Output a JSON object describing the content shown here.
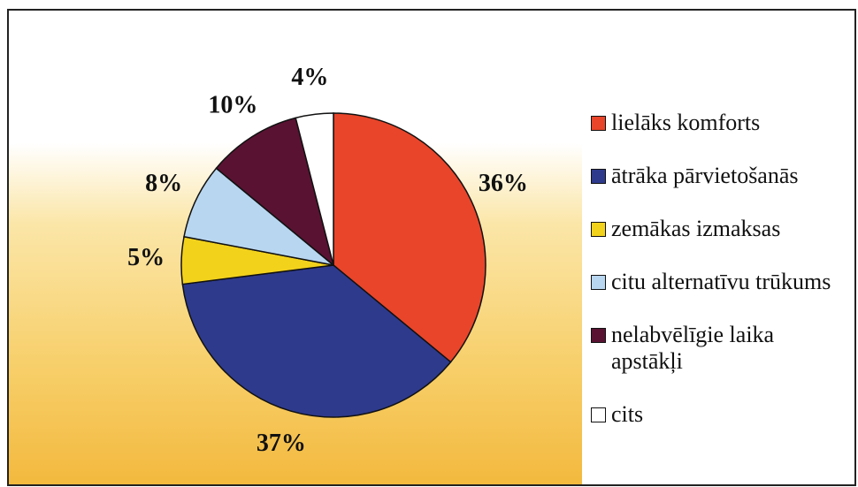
{
  "chart_data": {
    "type": "pie",
    "categories": [
      "lielāks komforts",
      "ātrāka pārvietošanās",
      "zemākas izmaksas",
      "citu alternatīvu trūkums",
      "nelabvēlīgie laika apstākļi",
      "cits"
    ],
    "values": [
      36,
      37,
      5,
      8,
      10,
      4
    ],
    "value_labels": [
      "36%",
      "37%",
      "5%",
      "8%",
      "10%",
      "4%"
    ],
    "colors": [
      "#e8452a",
      "#2e3a8c",
      "#f3d21c",
      "#b8d6f0",
      "#5a1232",
      "#ffffff"
    ],
    "legend": "right"
  }
}
